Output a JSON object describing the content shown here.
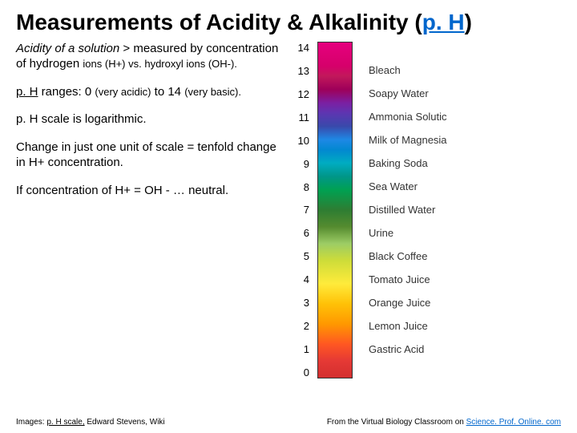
{
  "title": {
    "main": "Measurements of Acidity & Alkalinity ",
    "ph_open": "(",
    "ph_link": "p. H",
    "ph_close": ")"
  },
  "paragraphs": {
    "p1_italic": "Acidity of a solution",
    "p1_rest": " > measured by concentration of hydrogen ",
    "p1_small": "ions (H+) vs. hydroxyl ions (OH-).",
    "p2_u": "p. H",
    "p2_a": " ranges: 0 ",
    "p2_small1": "(very acidic)",
    "p2_b": " to 14 ",
    "p2_small2": "(very basic).",
    "p3": "p. H scale is logarithmic.",
    "p4": "Change in just one unit of scale = tenfold change in H+ concentration.",
    "p5": "If concentration of H+ = OH - … neutral."
  },
  "scale": {
    "values": [
      "14",
      "13",
      "12",
      "11",
      "10",
      "9",
      "8",
      "7",
      "6",
      "5",
      "4",
      "3",
      "2",
      "1",
      "0"
    ],
    "labels": [
      "",
      "Bleach",
      "Soapy Water",
      "Ammonia Solutic",
      "Milk of Magnesia",
      "Baking Soda",
      "Sea Water",
      "Distilled Water",
      "Urine",
      "Black Coffee",
      "Tomato Juice",
      "Orange Juice",
      "Lemon Juice",
      "Gastric Acid",
      ""
    ],
    "gradient_css": "linear-gradient(to bottom, #e6007e 0%, #d6006b 7%, #c2185b 10%, #9e0059 14%, #7b1fa2 18%, #5e35b1 21%, #3949ab 25%, #1e88e5 29%, #0288d1 32%, #00acc1 36%, #009688 40%, #00a152 44%, #2e7d32 50%, #558b2f 55%, #9ccc65 60%, #cddc39 65%, #ffeb3b 72%, #ffc107 78%, #ff9800 84%, #ff5722 90%, #e53935 95%, #d32f2f 100%)"
  },
  "footer": {
    "left_prefix": "Images: ",
    "left_link": "p. H scale,",
    "left_suffix": " Edward Stevens, Wiki",
    "right_prefix": "From the Virtual Biology Classroom on ",
    "right_link": "Science. Prof. Online. com"
  }
}
